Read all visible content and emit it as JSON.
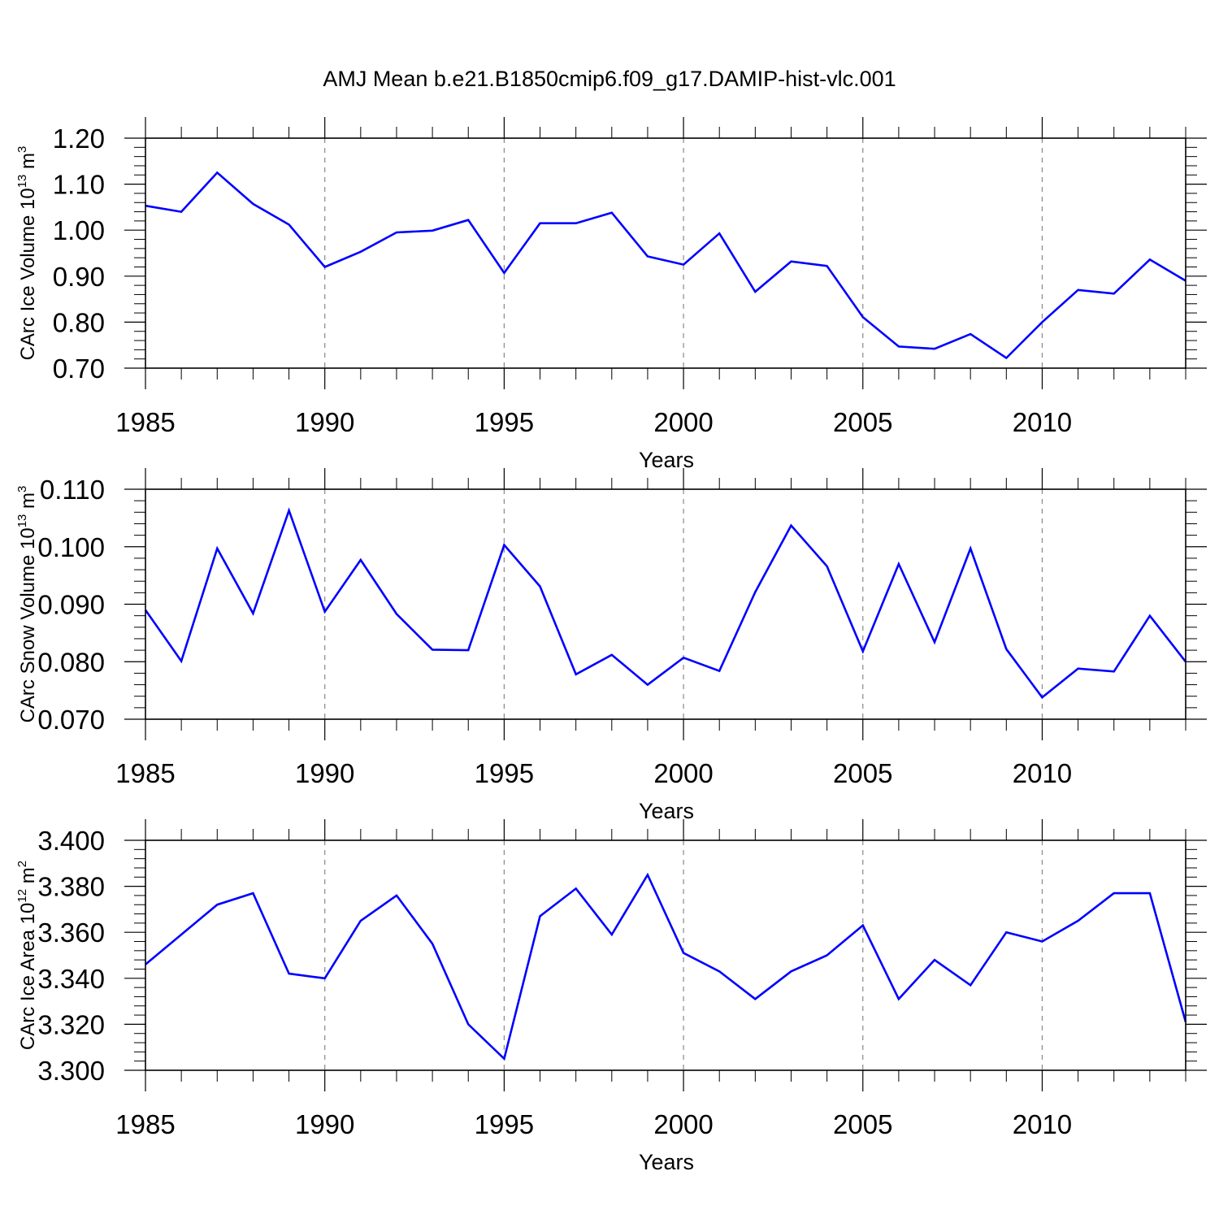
{
  "chart_data": {
    "type": "line",
    "title": "AMJ Mean b.e21.B1850cmip6.f09_g17.DAMIP-hist-vlc.001",
    "line_color": "#0000ff",
    "x": [
      1985,
      1986,
      1987,
      1988,
      1989,
      1990,
      1991,
      1992,
      1993,
      1994,
      1995,
      1996,
      1997,
      1998,
      1999,
      2000,
      2001,
      2002,
      2003,
      2004,
      2005,
      2006,
      2007,
      2008,
      2009,
      2010,
      2011,
      2012,
      2013,
      2014
    ],
    "xlim": [
      1985,
      2014
    ],
    "xticks": [
      "1985",
      "1990",
      "1995",
      "2000",
      "2005",
      "2010"
    ],
    "xlabel": "Years",
    "panels": [
      {
        "ylabel_main": "CArc Ice Volume 10",
        "ylabel_exp": "13",
        "ylabel_unit": " m",
        "ylabel_unit_exp": "3",
        "ylim": [
          0.7,
          1.2
        ],
        "yticks": [
          "0.70",
          "0.80",
          "0.90",
          "1.00",
          "1.10",
          "1.20"
        ],
        "values": [
          1.053,
          1.04,
          1.125,
          1.057,
          1.012,
          0.92,
          0.953,
          0.995,
          0.999,
          1.022,
          0.907,
          1.015,
          1.015,
          1.038,
          0.943,
          0.925,
          0.993,
          0.866,
          0.932,
          0.922,
          0.811,
          0.747,
          0.742,
          0.774,
          0.722,
          0.8,
          0.87,
          0.862,
          0.936,
          0.89
        ]
      },
      {
        "ylabel_main": "CArc Snow Volume 10",
        "ylabel_exp": "13",
        "ylabel_unit": " m",
        "ylabel_unit_exp": "3",
        "ylim": [
          0.07,
          0.11
        ],
        "yticks": [
          "0.070",
          "0.080",
          "0.090",
          "0.100",
          "0.110"
        ],
        "values": [
          0.089,
          0.0801,
          0.0997,
          0.0884,
          0.1063,
          0.0887,
          0.0977,
          0.0883,
          0.0821,
          0.082,
          0.1003,
          0.0931,
          0.0778,
          0.0812,
          0.076,
          0.0807,
          0.0784,
          0.0921,
          0.1037,
          0.0966,
          0.0818,
          0.097,
          0.0834,
          0.0997,
          0.0822,
          0.0738,
          0.0788,
          0.0783,
          0.088,
          0.08
        ]
      },
      {
        "ylabel_main": "CArc Ice Area 10",
        "ylabel_exp": "12",
        "ylabel_unit": " m",
        "ylabel_unit_exp": "2",
        "ylim": [
          3.3,
          3.4
        ],
        "yticks": [
          "3.300",
          "3.320",
          "3.340",
          "3.360",
          "3.380",
          "3.400"
        ],
        "values": [
          3.346,
          3.359,
          3.372,
          3.377,
          3.342,
          3.34,
          3.365,
          3.376,
          3.355,
          3.32,
          3.305,
          3.367,
          3.379,
          3.359,
          3.385,
          3.351,
          3.343,
          3.331,
          3.343,
          3.35,
          3.363,
          3.331,
          3.348,
          3.337,
          3.36,
          3.356,
          3.365,
          3.377,
          3.377,
          3.321
        ]
      }
    ]
  }
}
